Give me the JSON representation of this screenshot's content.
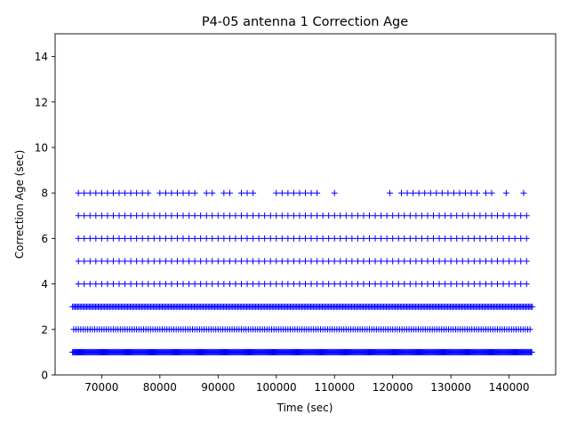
{
  "chart_data": {
    "type": "scatter",
    "title": "P4-05 antenna 1 Correction Age",
    "xlabel": "Time (sec)",
    "ylabel": "Correction Age (sec)",
    "xlim": [
      62000,
      148000
    ],
    "ylim": [
      0,
      15
    ],
    "xticks": [
      70000,
      80000,
      90000,
      100000,
      110000,
      120000,
      130000,
      140000
    ],
    "xtick_labels": [
      "70000",
      "80000",
      "90000",
      "100000",
      "110000",
      "120000",
      "130000",
      "140000"
    ],
    "yticks": [
      0,
      2,
      4,
      6,
      8,
      10,
      12,
      14
    ],
    "ytick_labels": [
      "0",
      "2",
      "4",
      "6",
      "8",
      "10",
      "12",
      "14"
    ],
    "grid": false,
    "marker": "+",
    "color": "#0000ff",
    "series": [
      {
        "y": 1,
        "x_start": 65000,
        "x_end": 144000,
        "step": 150
      },
      {
        "y": 2,
        "x_start": 65200,
        "x_end": 143800,
        "step": 400
      },
      {
        "y": 3,
        "x_start": 65000,
        "x_end": 144000,
        "step": 220
      },
      {
        "y": 4,
        "x_start": 66000,
        "x_end": 143800,
        "step": 1000
      },
      {
        "y": 5,
        "x_start": 66000,
        "x_end": 143800,
        "step": 1000
      },
      {
        "y": 6,
        "x_start": 66000,
        "x_end": 143800,
        "step": 1000
      },
      {
        "y": 7,
        "x_start": 66000,
        "x_end": 143800,
        "step": 1000
      },
      {
        "y": 8,
        "x_values": [
          66000,
          67000,
          68000,
          69000,
          70000,
          71000,
          72000,
          73000,
          74000,
          75000,
          76000,
          77000,
          78000,
          80000,
          81000,
          82000,
          83000,
          84000,
          85000,
          86000,
          88000,
          89000,
          91000,
          92000,
          94000,
          95000,
          96000,
          100000,
          101000,
          102000,
          103000,
          104000,
          105000,
          106000,
          107000,
          110000,
          119500,
          121500,
          122500,
          123500,
          124500,
          125500,
          126500,
          127500,
          128500,
          129500,
          130500,
          131500,
          132500,
          133500,
          134500,
          136000,
          137000,
          139500,
          142500
        ]
      }
    ]
  }
}
